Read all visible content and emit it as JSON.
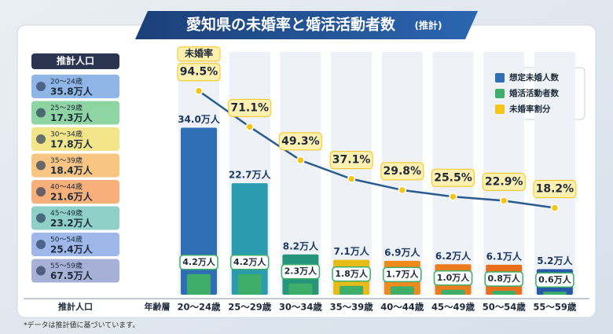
{
  "chart_data": {
    "type": "bar_line",
    "title": "愛知県の未婚率と婚活活動者数",
    "title_note": "(推計)",
    "x_label": "年齢層",
    "categories": [
      "20～24歳",
      "25～29歳",
      "30～34歳",
      "35～39歳",
      "40～44歳",
      "45～49歳",
      "50～54歳",
      "55～59歳"
    ],
    "population": {
      "title": "推計人口",
      "colors": [
        "#8fb6e6",
        "#8fd4a3",
        "#f3e58a",
        "#f8c583",
        "#f7b07a",
        "#8fd0c8",
        "#9fb8ea",
        "#a7b0d6"
      ],
      "values": [
        35.8,
        17.3,
        17.8,
        18.4,
        21.6,
        23.2,
        25.4,
        67.5
      ],
      "value_labels": [
        "35.8万人",
        "17.3万人",
        "17.8万人",
        "18.4万人",
        "21.6万人",
        "23.2万人",
        "25.4万人",
        "67.5万人"
      ]
    },
    "series": [
      {
        "name": "想定未婚人数",
        "color": "#2f6db5",
        "colors": [
          "#2f6db5",
          "#2b9bb0",
          "#27957c",
          "#e8bc18",
          "#ef8a1c",
          "#ec7d1e",
          "#e86f1c",
          "#2659a8"
        ],
        "values": [
          34.0,
          22.7,
          8.2,
          7.1,
          6.9,
          6.2,
          6.1,
          5.2
        ],
        "value_labels": [
          "34.0万人",
          "22.7万人",
          "8.2万人",
          "7.1万人",
          "6.9万人",
          "6.2万人",
          "6.1万人",
          "5.2万人"
        ]
      },
      {
        "name": "婚活活動者数",
        "color": "#3fae6a",
        "values": [
          4.2,
          4.2,
          2.3,
          1.8,
          1.7,
          1.0,
          0.8,
          0.6
        ],
        "value_labels": [
          "4.2万人",
          "4.2万人",
          "2.3万人",
          "1.8万人",
          "1.7万人",
          "1.0万人",
          "0.8万人",
          "0.6万人"
        ]
      },
      {
        "name": "未婚率割分",
        "color": "#f5c518",
        "line_color": "#2a5d8f",
        "axis": "y2",
        "label": "未婚率",
        "values": [
          94.5,
          71.1,
          49.3,
          37.1,
          29.8,
          25.5,
          22.9,
          18.2
        ],
        "value_labels": [
          "94.5%",
          "71.1%",
          "49.3%",
          "37.1%",
          "29.8%",
          "25.5%",
          "22.9%",
          "18.2%"
        ]
      }
    ],
    "ylim": [
      0,
      36
    ],
    "y2lim": [
      0,
      100
    ],
    "footnote": "*データは推計値に基づいています。"
  }
}
